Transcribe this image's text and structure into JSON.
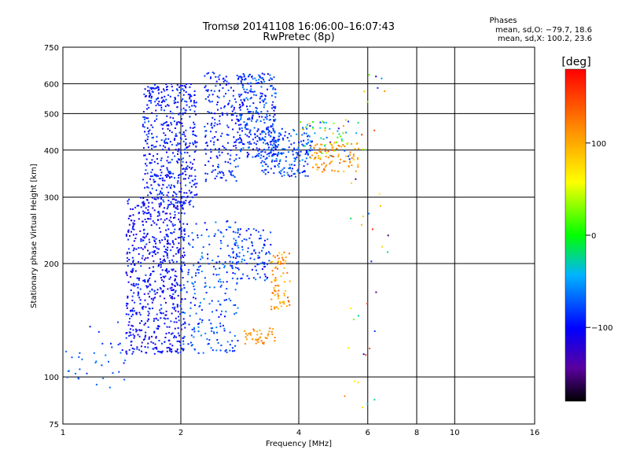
{
  "chart_data": {
    "type": "scatter",
    "title": "Tromsø 20141108 16:06:00–16:07:43",
    "subtitle": "RwPretec (8p)",
    "xlabel": "Frequency [MHz]",
    "ylabel": "Stationary phase Virtual Height [km]",
    "x_scale": "log",
    "y_scale": "log",
    "xlim": [
      1,
      16
    ],
    "ylim": [
      75,
      750
    ],
    "x_ticks": [
      "1",
      "2",
      "4",
      "6",
      "8",
      "10",
      "16"
    ],
    "y_ticks": [
      "75",
      "100",
      "200",
      "300",
      "400",
      "500",
      "600",
      "750"
    ],
    "grid": true,
    "stats": {
      "heading": "Phases",
      "line_o": "mean, sd,O: −79.7, 18.6",
      "line_x": "mean, sd,X: 100.2, 23.6"
    },
    "colorbar": {
      "label": "[deg]",
      "range": [
        -180,
        180
      ],
      "ticks": [
        "100",
        "0",
        "−100"
      ],
      "tick_values": [
        100,
        0,
        -100
      ]
    },
    "clusters": [
      {
        "freq": [
          1.0,
          1.12
        ],
        "height": [
          95,
          120
        ],
        "phase": [
          -80,
          -60
        ],
        "n": 12
      },
      {
        "freq": [
          1.15,
          1.45
        ],
        "height": [
          90,
          140
        ],
        "phase": [
          -95,
          -55
        ],
        "n": 25
      },
      {
        "freq": [
          1.45,
          2.05
        ],
        "height": [
          115,
          300
        ],
        "phase": [
          -120,
          -80
        ],
        "n": 650
      },
      {
        "freq": [
          1.6,
          2.2
        ],
        "height": [
          280,
          600
        ],
        "phase": [
          -115,
          -75
        ],
        "n": 500
      },
      {
        "freq": [
          2.0,
          2.8
        ],
        "height": [
          115,
          260
        ],
        "phase": [
          -100,
          -55
        ],
        "n": 230
      },
      {
        "freq": [
          2.3,
          2.8
        ],
        "height": [
          330,
          650
        ],
        "phase": [
          -110,
          -70
        ],
        "n": 190
      },
      {
        "freq": [
          2.7,
          3.4
        ],
        "height": [
          180,
          250
        ],
        "phase": [
          -110,
          -60
        ],
        "n": 110
      },
      {
        "freq": [
          2.8,
          3.5
        ],
        "height": [
          380,
          640
        ],
        "phase": [
          -110,
          -60
        ],
        "n": 300
      },
      {
        "freq": [
          3.2,
          4.3
        ],
        "height": [
          340,
          460
        ],
        "phase": [
          -100,
          -55
        ],
        "n": 200
      },
      {
        "freq": [
          3.4,
          3.8
        ],
        "height": [
          150,
          215
        ],
        "phase": [
          80,
          145
        ],
        "n": 80
      },
      {
        "freq": [
          2.9,
          3.5
        ],
        "height": [
          122,
          135
        ],
        "phase": [
          95,
          130
        ],
        "n": 40
      },
      {
        "freq": [
          4.3,
          5.7
        ],
        "height": [
          350,
          420
        ],
        "phase": [
          85,
          140
        ],
        "n": 90
      },
      {
        "freq": [
          4.0,
          5.7
        ],
        "height": [
          380,
          480
        ],
        "phase": [
          -140,
          110
        ],
        "n": 60
      },
      {
        "freq": [
          5.2,
          6.8
        ],
        "height": [
          80,
          640
        ],
        "phase": [
          -160,
          160
        ],
        "n": 45
      }
    ]
  }
}
